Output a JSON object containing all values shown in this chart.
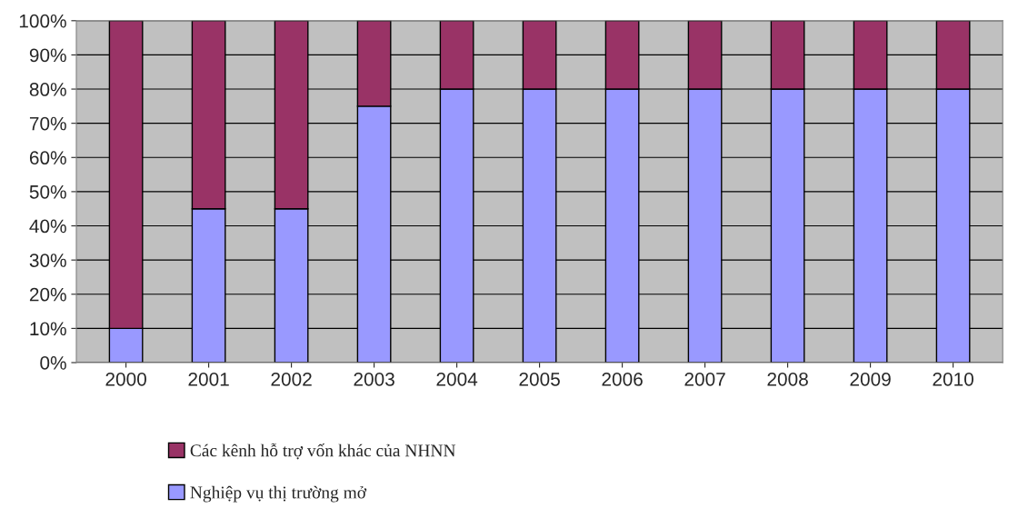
{
  "chart_data": {
    "type": "bar",
    "stacked": true,
    "categories": [
      "2000",
      "2001",
      "2002",
      "2003",
      "2004",
      "2005",
      "2006",
      "2007",
      "2008",
      "2009",
      "2010"
    ],
    "series": [
      {
        "name": "Nghiệp vụ thị trường mở",
        "color": "#9999ff",
        "values": [
          10,
          45,
          45,
          75,
          80,
          80,
          80,
          80,
          80,
          80,
          80
        ]
      },
      {
        "name": "Các kênh hỗ trợ vốn khác của NHNN",
        "color": "#993366",
        "values": [
          90,
          55,
          55,
          25,
          20,
          20,
          20,
          20,
          20,
          20,
          20
        ]
      }
    ],
    "ylim": [
      0,
      100
    ],
    "yticks": [
      {
        "value": 0,
        "label": "0%"
      },
      {
        "value": 10,
        "label": "10%"
      },
      {
        "value": 20,
        "label": "20%"
      },
      {
        "value": 30,
        "label": "30%"
      },
      {
        "value": 40,
        "label": "40%"
      },
      {
        "value": 50,
        "label": "50%"
      },
      {
        "value": 60,
        "label": "60%"
      },
      {
        "value": 70,
        "label": "70%"
      },
      {
        "value": 80,
        "label": "80%"
      },
      {
        "value": 90,
        "label": "90%"
      },
      {
        "value": 100,
        "label": "100%"
      }
    ],
    "grid": "y",
    "legend": "bottom"
  }
}
